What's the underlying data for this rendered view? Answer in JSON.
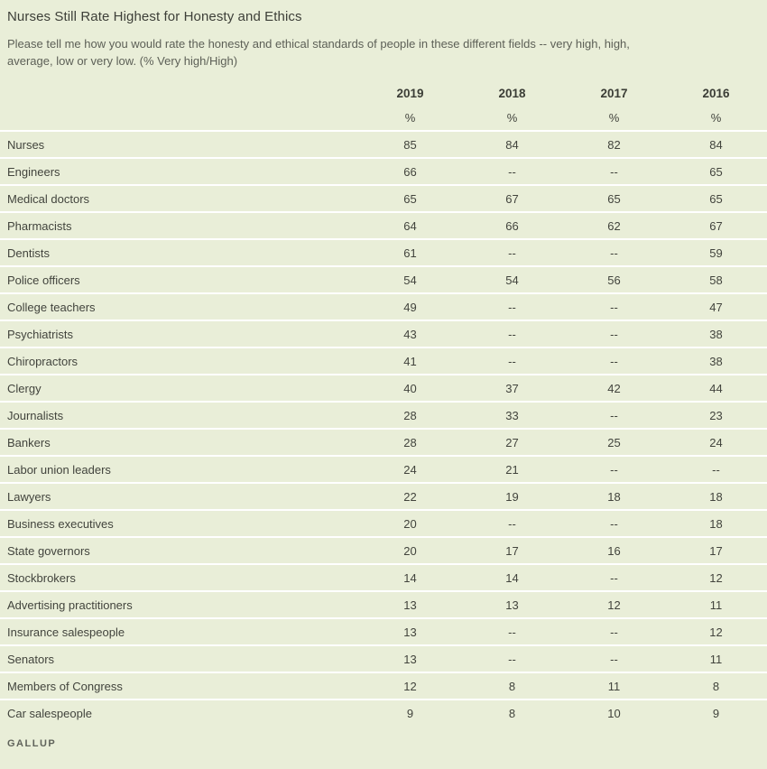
{
  "header": {
    "title": "Nurses Still Rate Highest for Honesty and Ethics",
    "subtitle": "Please tell me how you would rate the honesty and ethical standards of people in these different fields -- very high, high, average, low or very low. (% Very high/High)"
  },
  "table": {
    "columns": [
      "2019",
      "2018",
      "2017",
      "2016"
    ],
    "units": [
      "%",
      "%",
      "%",
      "%"
    ],
    "missing_marker": "--",
    "rows": [
      {
        "label": "Nurses",
        "values": [
          "85",
          "84",
          "82",
          "84"
        ]
      },
      {
        "label": "Engineers",
        "values": [
          "66",
          "--",
          "--",
          "65"
        ]
      },
      {
        "label": "Medical doctors",
        "values": [
          "65",
          "67",
          "65",
          "65"
        ]
      },
      {
        "label": "Pharmacists",
        "values": [
          "64",
          "66",
          "62",
          "67"
        ]
      },
      {
        "label": "Dentists",
        "values": [
          "61",
          "--",
          "--",
          "59"
        ]
      },
      {
        "label": "Police officers",
        "values": [
          "54",
          "54",
          "56",
          "58"
        ]
      },
      {
        "label": "College teachers",
        "values": [
          "49",
          "--",
          "--",
          "47"
        ]
      },
      {
        "label": "Psychiatrists",
        "values": [
          "43",
          "--",
          "--",
          "38"
        ]
      },
      {
        "label": "Chiropractors",
        "values": [
          "41",
          "--",
          "--",
          "38"
        ]
      },
      {
        "label": "Clergy",
        "values": [
          "40",
          "37",
          "42",
          "44"
        ]
      },
      {
        "label": "Journalists",
        "values": [
          "28",
          "33",
          "--",
          "23"
        ]
      },
      {
        "label": "Bankers",
        "values": [
          "28",
          "27",
          "25",
          "24"
        ]
      },
      {
        "label": "Labor union leaders",
        "values": [
          "24",
          "21",
          "--",
          "--"
        ]
      },
      {
        "label": "Lawyers",
        "values": [
          "22",
          "19",
          "18",
          "18"
        ]
      },
      {
        "label": "Business executives",
        "values": [
          "20",
          "--",
          "--",
          "18"
        ]
      },
      {
        "label": "State governors",
        "values": [
          "20",
          "17",
          "16",
          "17"
        ]
      },
      {
        "label": "Stockbrokers",
        "values": [
          "14",
          "14",
          "--",
          "12"
        ]
      },
      {
        "label": "Advertising practitioners",
        "values": [
          "13",
          "13",
          "12",
          "11"
        ]
      },
      {
        "label": "Insurance salespeople",
        "values": [
          "13",
          "--",
          "--",
          "12"
        ]
      },
      {
        "label": "Senators",
        "values": [
          "13",
          "--",
          "--",
          "11"
        ]
      },
      {
        "label": "Members of Congress",
        "values": [
          "12",
          "8",
          "11",
          "8"
        ]
      },
      {
        "label": "Car salespeople",
        "values": [
          "9",
          "8",
          "10",
          "9"
        ]
      }
    ]
  },
  "footer": {
    "brand": "GALLUP"
  },
  "colors": {
    "background": "#e9eed8",
    "row_separator": "#ffffff",
    "title_text": "#3d3f38",
    "subtitle_text": "#5d6057",
    "body_text": "#42443d",
    "brand_text": "#60635b"
  },
  "chart_data": {
    "type": "table",
    "title": "Nurses Still Rate Highest for Honesty and Ethics",
    "subtitle": "Please tell me how you would rate the honesty and ethical standards of people in these different fields -- very high, high, average, low or very low. (% Very high/High)",
    "unit": "% Very high/High",
    "categories": [
      "Nurses",
      "Engineers",
      "Medical doctors",
      "Pharmacists",
      "Dentists",
      "Police officers",
      "College teachers",
      "Psychiatrists",
      "Chiropractors",
      "Clergy",
      "Journalists",
      "Bankers",
      "Labor union leaders",
      "Lawyers",
      "Business executives",
      "State governors",
      "Stockbrokers",
      "Advertising practitioners",
      "Insurance salespeople",
      "Senators",
      "Members of Congress",
      "Car salespeople"
    ],
    "series": [
      {
        "name": "2019",
        "values": [
          85,
          66,
          65,
          64,
          61,
          54,
          49,
          43,
          41,
          40,
          28,
          28,
          24,
          22,
          20,
          20,
          14,
          13,
          13,
          13,
          12,
          9
        ]
      },
      {
        "name": "2018",
        "values": [
          84,
          null,
          67,
          66,
          null,
          54,
          null,
          null,
          null,
          37,
          33,
          27,
          21,
          19,
          null,
          17,
          14,
          13,
          null,
          null,
          8,
          8
        ]
      },
      {
        "name": "2017",
        "values": [
          82,
          null,
          65,
          62,
          null,
          56,
          null,
          null,
          null,
          42,
          null,
          25,
          null,
          18,
          null,
          16,
          null,
          12,
          null,
          null,
          11,
          10
        ]
      },
      {
        "name": "2016",
        "values": [
          84,
          65,
          65,
          67,
          59,
          58,
          47,
          38,
          38,
          44,
          23,
          24,
          null,
          18,
          18,
          17,
          12,
          11,
          12,
          11,
          8,
          9
        ]
      }
    ],
    "source": "GALLUP"
  }
}
